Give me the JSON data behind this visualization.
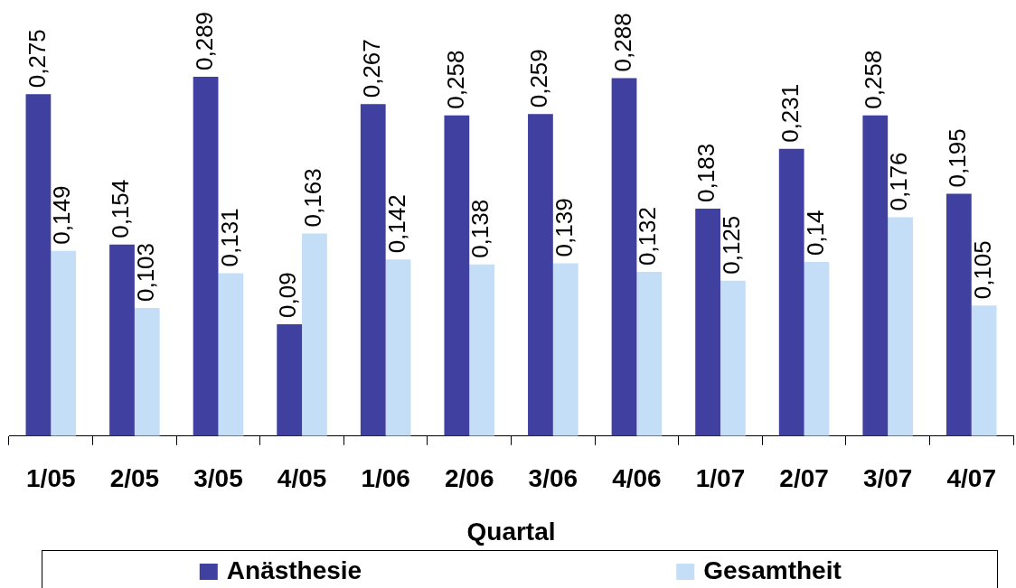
{
  "chart_data": {
    "type": "bar",
    "xlabel": "Quartal",
    "categories": [
      "1/05",
      "2/05",
      "3/05",
      "4/05",
      "1/06",
      "2/06",
      "3/06",
      "4/06",
      "1/07",
      "2/07",
      "3/07",
      "4/07"
    ],
    "series": [
      {
        "name": "Anästhesie",
        "color": "#4040a0",
        "values": [
          0.275,
          0.154,
          0.289,
          0.09,
          0.267,
          0.258,
          0.259,
          0.288,
          0.183,
          0.231,
          0.258,
          0.195
        ],
        "value_labels": [
          "0,275",
          "0,154",
          "0,289",
          "0,09",
          "0,267",
          "0,258",
          "0,259",
          "0,288",
          "0,183",
          "0,231",
          "0,258",
          "0,195"
        ]
      },
      {
        "name": "Gesamtheit",
        "color": "#c4def7",
        "values": [
          0.149,
          0.103,
          0.131,
          0.163,
          0.142,
          0.138,
          0.139,
          0.132,
          0.125,
          0.14,
          0.176,
          0.105
        ],
        "value_labels": [
          "0,149",
          "0,103",
          "0,131",
          "0,163",
          "0,142",
          "0,138",
          "0,139",
          "0,132",
          "0,125",
          "0,14",
          "0,176",
          "0,105"
        ]
      }
    ],
    "legend": "bottom"
  }
}
